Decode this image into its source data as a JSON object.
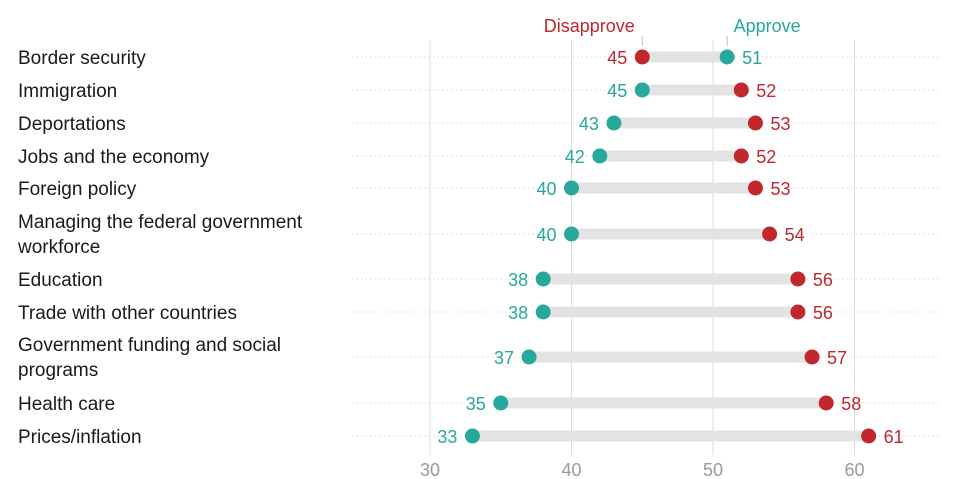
{
  "chart_data": {
    "type": "dumbbell",
    "title": "",
    "xlabel": "",
    "ylabel": "",
    "xlim": [
      25,
      65
    ],
    "xticks": [
      30,
      40,
      50,
      60
    ],
    "legend": {
      "disapprove_label": "Disapprove",
      "approve_label": "Approve"
    },
    "colors": {
      "approve": "#27a89a",
      "disapprove": "#c0282d",
      "bar": "#e3e3e3",
      "grid": "#dcdcdc"
    },
    "categories": [
      "Border security",
      "Immigration",
      "Deportations",
      "Jobs and the economy",
      "Foreign policy",
      "Managing the federal government workforce",
      "Education",
      "Trade with other countries",
      "Government funding and social programs",
      "Health care",
      "Prices/inflation"
    ],
    "series": [
      {
        "name": "Approve",
        "values": [
          51,
          45,
          43,
          42,
          40,
          40,
          38,
          38,
          37,
          35,
          33
        ]
      },
      {
        "name": "Disapprove",
        "values": [
          45,
          52,
          53,
          52,
          53,
          54,
          56,
          56,
          57,
          58,
          61
        ]
      }
    ]
  }
}
